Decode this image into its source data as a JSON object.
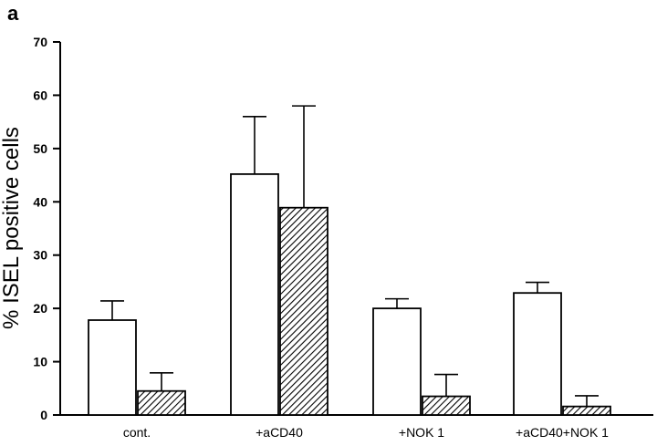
{
  "panel_label": "a",
  "chart_data": {
    "type": "bar",
    "title": "",
    "xlabel": "",
    "ylabel": "% ISEL positive cells",
    "ylim": [
      0,
      70
    ],
    "yticks": [
      0,
      10,
      20,
      30,
      40,
      50,
      60,
      70
    ],
    "categories": [
      "cont.",
      "+aCD40",
      "+NOK 1",
      "+aCD40+NOK 1"
    ],
    "series": [
      {
        "values": [
          17.8,
          45.2,
          20.0,
          22.9
        ],
        "errors": [
          3.6,
          10.8,
          1.8,
          2.0
        ],
        "pattern": "open",
        "color": "#ffffff"
      },
      {
        "values": [
          4.5,
          38.9,
          3.5,
          1.6
        ],
        "errors": [
          3.4,
          19.1,
          4.1,
          2.0
        ],
        "pattern": "hatched",
        "color": "#000000"
      }
    ],
    "grid": false,
    "legend": "none"
  }
}
